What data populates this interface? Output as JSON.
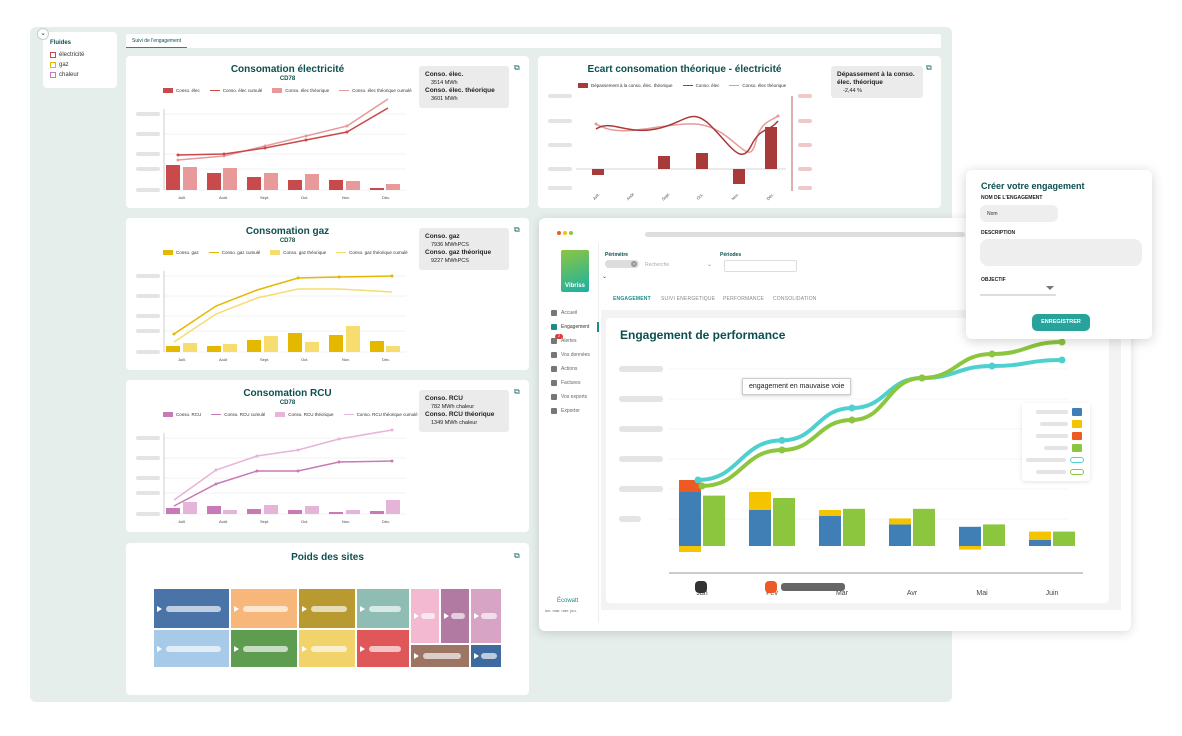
{
  "sidebar_filter": {
    "title": "Fluides",
    "items": [
      {
        "label": "électricité",
        "color": "#c94a4a"
      },
      {
        "label": "gaz",
        "color": "#e5b800"
      },
      {
        "label": "chaleur",
        "color": "#c77ab5"
      }
    ]
  },
  "top_tab": "Suivi de l'engagement",
  "elec": {
    "title": "Consomation électricité",
    "sub": "CD78",
    "legend": [
      "Conso. élec",
      "Conso. élec cumulé",
      "Conso. élec théorique",
      "Conso. élec théorique cumulé"
    ],
    "stat1_label": "Conso. élec.",
    "stat1_value": "3514 MWh",
    "stat2_label": "Conso. élec. théorique",
    "stat2_value": "3601 MWh",
    "months": [
      "Juill.",
      "Août",
      "Sept.",
      "Oct.",
      "Nov.",
      "Déc."
    ]
  },
  "ecart": {
    "title": "Ecart consomation théorique - électricité",
    "legend": [
      "Dépassement à la conso. élec. théorique",
      "Conso. élec",
      "Conso. élec théorique"
    ],
    "stat_label": "Dépassement à la conso. élec. théorique",
    "stat_value": "-2,44 %",
    "months": [
      "Juill.",
      "Août",
      "Sept.",
      "Oct.",
      "Nov.",
      "Déc."
    ]
  },
  "gaz": {
    "title": "Consomation gaz",
    "sub": "CD78",
    "legend": [
      "Conso. gaz",
      "Conso. gaz cumulé",
      "Conso. gaz théorique",
      "Conso. gaz théorique cumulé"
    ],
    "stat1_label": "Conso. gaz",
    "stat1_value": "7936 MWhPCS",
    "stat2_label": "Conso. gaz théorique",
    "stat2_value": "9227 MWhPCS",
    "months": [
      "Juill.",
      "Août",
      "Sept.",
      "Oct.",
      "Nov.",
      "Déc."
    ]
  },
  "rcu": {
    "title": "Consomation RCU",
    "sub": "CD78",
    "legend": [
      "Conso. RCU",
      "Conso. RCU cumulé",
      "Conso. RCU théorique",
      "Conso. RCU théorique cumulé"
    ],
    "stat1_label": "Conso. RCU",
    "stat1_value": "782 MWh chaleur",
    "stat2_label": "Conso. RCU théorique",
    "stat2_value": "1349 MWh chaleur",
    "months": [
      "Juill.",
      "Août",
      "Sept.",
      "Oct.",
      "Nov.",
      "Déc."
    ]
  },
  "poids": {
    "title": "Poids des sites"
  },
  "app": {
    "logo": "Vibriss",
    "perimetre_label": "Périmètre",
    "search_placeholder": "Recherche",
    "periodes_label": "Périodes",
    "nav": [
      "Accueil",
      "Engagement",
      "Alertes",
      "Vos données",
      "Actions",
      "Factures",
      "Vos exports",
      "Exporter"
    ],
    "tabs": [
      "ENGAGEMENT",
      "SUIVI ENERGETIQUE",
      "PERFORMANCE",
      "CONSOLIDATION"
    ],
    "chart_title": "Engagement de performance",
    "tooltip": "engagement en mauvaise voie",
    "footer_brand": "Écowatt",
    "footer_days": "lun. mar. mer. jeu.",
    "alert_count": "2"
  },
  "modal": {
    "title": "Créer votre engagement",
    "name_label": "NOM DE L'ENGAGEMENT",
    "name_value": "Nom",
    "desc_label": "DESCRIPTION",
    "obj_label": "OBJECTIF",
    "save": "ENREGISTRER"
  },
  "chart_data": [
    {
      "type": "bar",
      "title": "Engagement de performance",
      "categories": [
        "Jan",
        "Fev",
        "Mar",
        "Avr",
        "Mai",
        "Juin"
      ],
      "series": [
        {
          "color": "#3f7fb5",
          "values": [
            45,
            30,
            25,
            18,
            16,
            5
          ]
        },
        {
          "color": "#ee5a24",
          "values": [
            10,
            0,
            0,
            0,
            0,
            0
          ]
        },
        {
          "color": "#f5c400",
          "values": [
            -5,
            15,
            5,
            5,
            -3,
            7
          ]
        },
        {
          "color": "#8cc63f",
          "values": [
            42,
            40,
            31,
            31,
            18,
            12
          ]
        },
        {
          "color": "#4fd0d0",
          "type": "line",
          "values": [
            55,
            88,
            115,
            140,
            150,
            155
          ]
        },
        {
          "color": "#8cc63f",
          "type": "line",
          "values": [
            50,
            80,
            105,
            140,
            160,
            170
          ]
        }
      ]
    }
  ]
}
